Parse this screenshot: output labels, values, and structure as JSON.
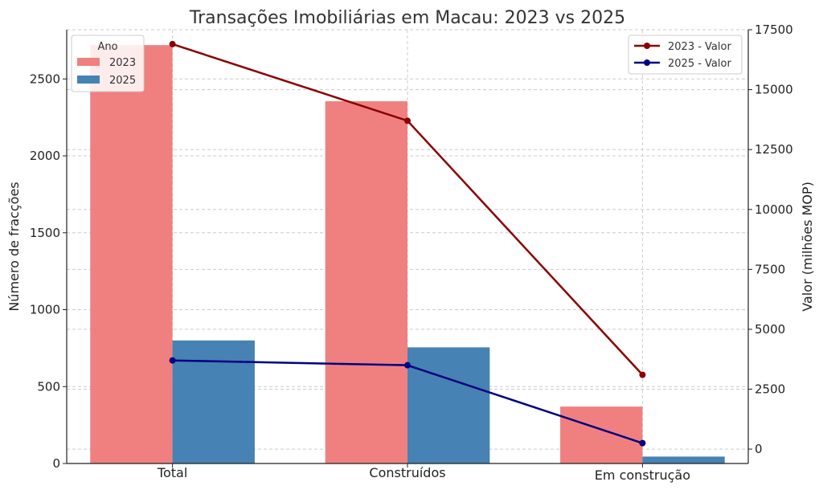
{
  "chart_data": {
    "type": "bar",
    "title": "Transações Imobiliárias em Macau: 2023 vs 2025",
    "categories": [
      "Total",
      "Construídos",
      "Em construção"
    ],
    "y_left": {
      "label": "Número de fracções",
      "range": [
        0,
        2820
      ],
      "ticks": [
        0,
        500,
        1000,
        1500,
        2000,
        2500
      ]
    },
    "y_right": {
      "label": "Valor (milhões MOP)",
      "range": [
        -600,
        17500
      ],
      "ticks": [
        0,
        2500,
        5000,
        7500,
        10000,
        12500,
        15000,
        17500
      ]
    },
    "bar_series": [
      {
        "name": "2023",
        "color": "#f08080",
        "values": [
          2720,
          2355,
          370
        ]
      },
      {
        "name": "2025",
        "color": "#4682b4",
        "values": [
          800,
          755,
          45
        ]
      }
    ],
    "line_series": [
      {
        "name": "2023 - Valor",
        "color": "#8b0000",
        "values": [
          16900,
          13700,
          3100
        ]
      },
      {
        "name": "2025 - Valor",
        "color": "#000080",
        "values": [
          3700,
          3500,
          250
        ]
      }
    ],
    "bar_legend": {
      "title": "Ano",
      "position": "top-left"
    },
    "line_legend": {
      "position": "top-right"
    },
    "grid": true
  }
}
